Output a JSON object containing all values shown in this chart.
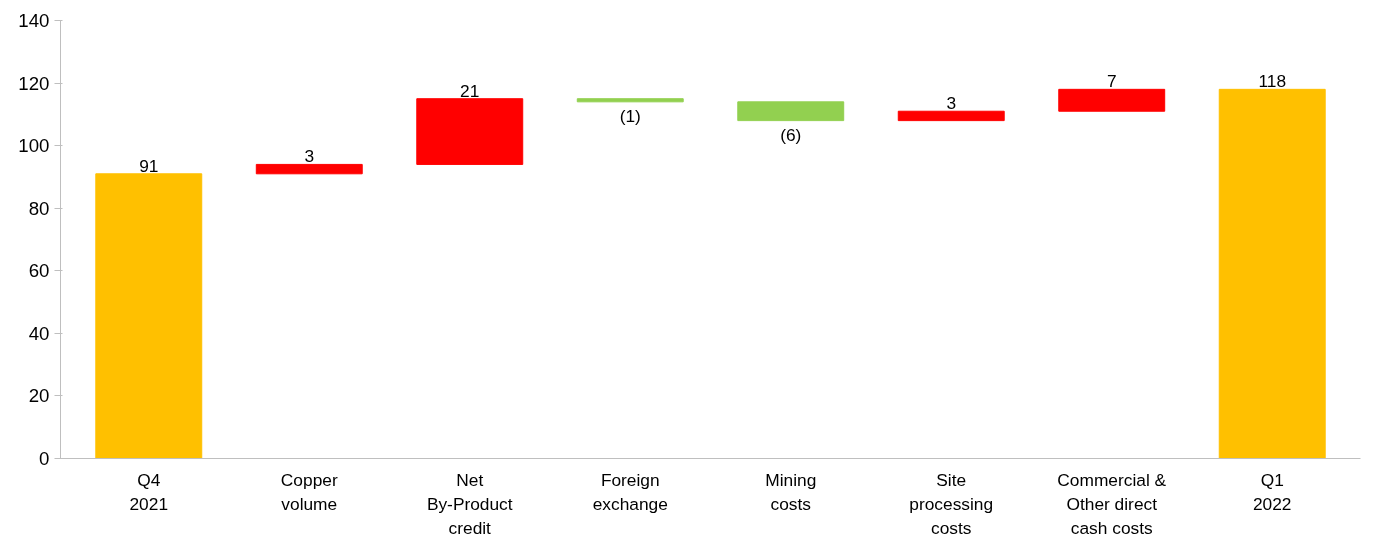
{
  "chart_data": {
    "type": "bar",
    "categories": [
      "Q4\n2021",
      "Copper\nvolume",
      "Net\nBy-Product\ncredit",
      "Foreign\nexchange",
      "Mining\ncosts",
      "Site\nprocessing\ncosts",
      "Commercial &\nOther direct\ncash costs",
      "Q1\n2022"
    ],
    "values": [
      91,
      3,
      21,
      -1,
      -6,
      3,
      7,
      118
    ],
    "base": [
      0,
      91,
      94,
      115,
      114,
      108,
      111,
      0
    ],
    "colors": [
      "#ffc000",
      "#ff0000",
      "#ff0000",
      "#92d050",
      "#92d050",
      "#ff0000",
      "#ff0000",
      "#ffc000"
    ],
    "value_labels": [
      "91",
      "3",
      "21",
      "(1)",
      "(6)",
      "3",
      "7",
      "118"
    ],
    "ylim": [
      0,
      140
    ],
    "yticks": [
      0,
      20,
      40,
      60,
      80,
      100,
      120,
      140
    ],
    "grid": false
  }
}
